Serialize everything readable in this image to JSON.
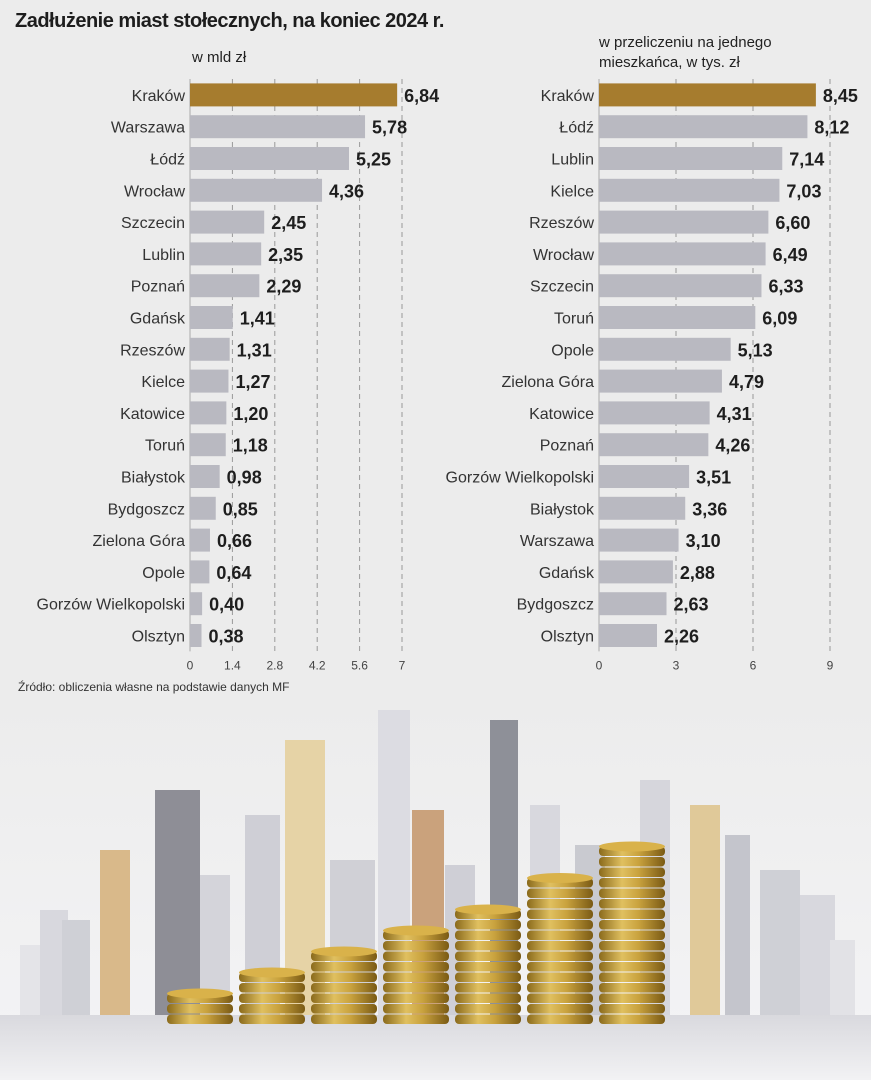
{
  "title": "Zadłużenie miast stołecznych, na koniec 2024 r.",
  "source": "Źródło: obliczenia własne na podstawie danych MF",
  "colors": {
    "highlight": "#a67c2e",
    "bar": "#b9b9c1",
    "background": "#ececec"
  },
  "chart_data": [
    {
      "type": "bar",
      "orientation": "horizontal",
      "title": "",
      "unit_label": "w mld zł",
      "xlabel": "",
      "ylabel": "",
      "xlim": [
        0,
        7
      ],
      "ticks": [
        "0",
        "1.4",
        "2.8",
        "4.2",
        "5.6",
        "7"
      ],
      "tick_values": [
        0,
        1.4,
        2.8,
        4.2,
        5.6,
        7
      ],
      "grid": "dashed vertical",
      "highlight": "Kraków",
      "categories": [
        "Kraków",
        "Warszawa",
        "Łódź",
        "Wrocław",
        "Szczecin",
        "Lublin",
        "Poznań",
        "Gdańsk",
        "Rzeszów",
        "Kielce",
        "Katowice",
        "Toruń",
        "Białystok",
        "Bydgoszcz",
        "Zielona Góra",
        "Opole",
        "Gorzów Wielkopolski",
        "Olsztyn"
      ],
      "values": [
        6.84,
        5.78,
        5.25,
        4.36,
        2.45,
        2.35,
        2.29,
        1.41,
        1.31,
        1.27,
        1.2,
        1.18,
        0.98,
        0.85,
        0.66,
        0.64,
        0.4,
        0.38
      ],
      "labels": [
        "6,84",
        "5,78",
        "5,25",
        "4,36",
        "2,45",
        "2,35",
        "2,29",
        "1,41",
        "1,31",
        "1,27",
        "1,20",
        "1,18",
        "0,98",
        "0,85",
        "0,66",
        "0,64",
        "0,40",
        "0,38"
      ]
    },
    {
      "type": "bar",
      "orientation": "horizontal",
      "title": "",
      "unit_label_line1": "w przeliczeniu na jednego",
      "unit_label_line2": "mieszkańca, w tys. zł",
      "xlabel": "",
      "ylabel": "",
      "xlim": [
        0,
        9
      ],
      "ticks": [
        "0",
        "3",
        "6",
        "9"
      ],
      "tick_values": [
        0,
        3,
        6,
        9
      ],
      "grid": "dashed vertical",
      "highlight": "Kraków",
      "categories": [
        "Kraków",
        "Łódź",
        "Lublin",
        "Kielce",
        "Rzeszów",
        "Wrocław",
        "Szczecin",
        "Toruń",
        "Opole",
        "Zielona Góra",
        "Katowice",
        "Poznań",
        "Gorzów Wielkopolski",
        "Białystok",
        "Warszawa",
        "Gdańsk",
        "Bydgoszcz",
        "Olsztyn"
      ],
      "values": [
        8.45,
        8.12,
        7.14,
        7.03,
        6.6,
        6.49,
        6.33,
        6.09,
        5.13,
        4.79,
        4.31,
        4.26,
        3.51,
        3.36,
        3.1,
        2.88,
        2.63,
        2.26
      ],
      "labels": [
        "8,45",
        "8,12",
        "7,14",
        "7,03",
        "6,60",
        "6,49",
        "6,33",
        "6,09",
        "5,13",
        "4,79",
        "4,31",
        "4,26",
        "3,51",
        "3,36",
        "3,10",
        "2,88",
        "2,63",
        "2,26"
      ]
    }
  ],
  "illustration": {
    "description": "city skyline with stacks of gold coins",
    "coin_stacks": [
      3,
      5,
      7,
      9,
      11,
      14,
      17
    ]
  }
}
